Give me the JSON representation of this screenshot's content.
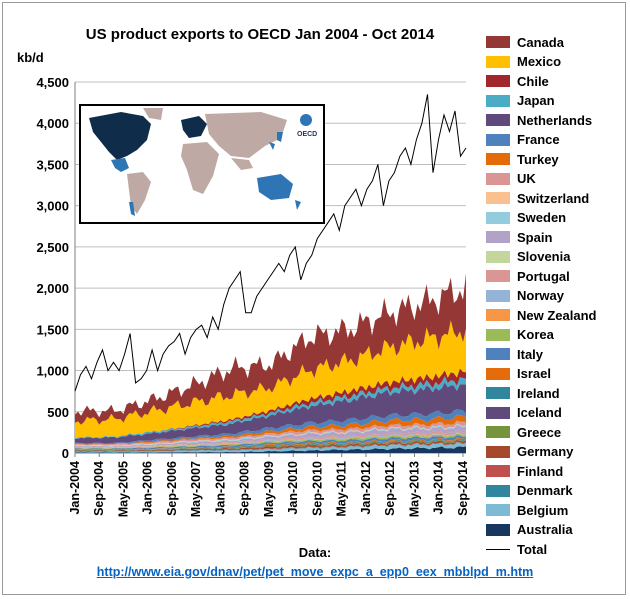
{
  "chart_data": {
    "type": "area",
    "title": "US product exports to OECD Jan 2004 - Oct 2014",
    "ylabel": "kb/d",
    "ylim": [
      0,
      4500
    ],
    "yticks": [
      "0",
      "500",
      "1,000",
      "1,500",
      "2,000",
      "2,500",
      "3,000",
      "3,500",
      "4,000",
      "4,500"
    ],
    "xticks": [
      "Jan-2004",
      "Sep-2004",
      "May-2005",
      "Jan-2006",
      "Sep-2006",
      "May-2007",
      "Jan-2008",
      "Sep-2008",
      "May-2009",
      "Jan-2010",
      "Sep-2010",
      "May-2011",
      "Jan-2012",
      "Sep-2012",
      "May-2013",
      "Jan-2014",
      "Sep-2014"
    ],
    "x_start": "Jan-2004",
    "x_end": "Oct-2014",
    "stacked": true,
    "grid": "horizontal",
    "legend_position": "right",
    "series": [
      {
        "name": "Canada",
        "color": "#953735",
        "values": [
          120,
          100,
          140,
          210,
          320,
          280,
          400,
          380,
          420,
          450,
          520
        ]
      },
      {
        "name": "Mexico",
        "color": "#ffc000",
        "values": [
          200,
          210,
          250,
          280,
          300,
          280,
          350,
          370,
          420,
          470,
          500
        ]
      },
      {
        "name": "Chile",
        "color": "#a0282c",
        "values": [
          0,
          0,
          0,
          10,
          20,
          30,
          50,
          60,
          70,
          80,
          90
        ]
      },
      {
        "name": "Japan",
        "color": "#4bacc6",
        "values": [
          10,
          10,
          20,
          20,
          30,
          30,
          40,
          50,
          50,
          60,
          70
        ]
      },
      {
        "name": "Netherlands",
        "color": "#604a7b",
        "values": [
          60,
          70,
          80,
          100,
          120,
          150,
          200,
          240,
          280,
          300,
          320
        ]
      },
      {
        "name": "France",
        "color": "#4f81bd",
        "values": [
          10,
          10,
          20,
          20,
          30,
          40,
          50,
          60,
          60,
          70,
          70
        ]
      },
      {
        "name": "Turkey",
        "color": "#e36c09",
        "values": [
          5,
          5,
          10,
          15,
          20,
          30,
          40,
          50,
          60,
          60,
          70
        ]
      },
      {
        "name": "UK",
        "color": "#d99694",
        "values": [
          10,
          10,
          15,
          20,
          20,
          25,
          30,
          30,
          35,
          35,
          40
        ]
      },
      {
        "name": "Switzerland",
        "color": "#fac090",
        "values": [
          5,
          5,
          5,
          5,
          5,
          5,
          5,
          5,
          5,
          5,
          5
        ]
      },
      {
        "name": "Sweden",
        "color": "#93cddd",
        "values": [
          5,
          5,
          5,
          10,
          10,
          10,
          10,
          10,
          10,
          10,
          10
        ]
      },
      {
        "name": "Spain",
        "color": "#b3a2c7",
        "values": [
          10,
          10,
          15,
          20,
          20,
          30,
          40,
          40,
          50,
          50,
          60
        ]
      },
      {
        "name": "Slovenia",
        "color": "#c3d69b",
        "values": [
          0,
          0,
          0,
          0,
          0,
          0,
          0,
          0,
          0,
          0,
          0
        ]
      },
      {
        "name": "Portugal",
        "color": "#d99694",
        "values": [
          5,
          5,
          5,
          10,
          10,
          10,
          15,
          15,
          20,
          20,
          20
        ]
      },
      {
        "name": "Norway",
        "color": "#95b3d7",
        "values": [
          5,
          5,
          5,
          5,
          10,
          10,
          10,
          10,
          10,
          10,
          10
        ]
      },
      {
        "name": "New Zealand",
        "color": "#f79646",
        "values": [
          5,
          5,
          5,
          5,
          5,
          5,
          5,
          5,
          5,
          5,
          5
        ]
      },
      {
        "name": "Korea",
        "color": "#9bbb59",
        "values": [
          5,
          5,
          10,
          10,
          10,
          15,
          15,
          20,
          20,
          20,
          20
        ]
      },
      {
        "name": "Italy",
        "color": "#4f81bd",
        "values": [
          10,
          10,
          15,
          15,
          20,
          20,
          25,
          25,
          30,
          30,
          30
        ]
      },
      {
        "name": "Israel",
        "color": "#e46c0a",
        "values": [
          5,
          5,
          5,
          5,
          5,
          10,
          10,
          10,
          10,
          10,
          10
        ]
      },
      {
        "name": "Ireland",
        "color": "#31859c",
        "values": [
          5,
          5,
          5,
          5,
          10,
          10,
          10,
          10,
          10,
          10,
          10
        ]
      },
      {
        "name": "Iceland",
        "color": "#604a7b",
        "values": [
          0,
          0,
          0,
          0,
          0,
          0,
          0,
          0,
          0,
          0,
          0
        ]
      },
      {
        "name": "Greece",
        "color": "#77933c",
        "values": [
          5,
          5,
          5,
          5,
          5,
          10,
          10,
          10,
          10,
          10,
          10
        ]
      },
      {
        "name": "Germany",
        "color": "#a5482b",
        "values": [
          10,
          10,
          10,
          15,
          15,
          20,
          20,
          20,
          20,
          20,
          20
        ]
      },
      {
        "name": "Finland",
        "color": "#c0504d",
        "values": [
          0,
          0,
          0,
          0,
          5,
          5,
          5,
          5,
          5,
          5,
          5
        ]
      },
      {
        "name": "Denmark",
        "color": "#31859c",
        "values": [
          5,
          5,
          5,
          5,
          5,
          5,
          5,
          5,
          5,
          5,
          5
        ]
      },
      {
        "name": "Belgium",
        "color": "#7dbad3",
        "values": [
          10,
          10,
          15,
          20,
          20,
          25,
          30,
          30,
          40,
          40,
          40
        ]
      },
      {
        "name": "Australia",
        "color": "#17375e",
        "values": [
          5,
          5,
          5,
          10,
          10,
          20,
          30,
          40,
          50,
          60,
          70
        ]
      }
    ],
    "total": {
      "name": "Total",
      "color": "#000000",
      "values": [
        750,
        950,
        1050,
        900,
        1100,
        1250,
        1000,
        1100,
        1000,
        1200,
        1450,
        850,
        900,
        1000,
        1250,
        1000,
        1200,
        1300,
        1350,
        1450,
        1200,
        1400,
        1500,
        1550,
        1400,
        1650,
        1500,
        1800,
        2000,
        2100,
        2200,
        1700,
        1700,
        1900,
        2000,
        2100,
        2200,
        2300,
        2200,
        2400,
        2500,
        2100,
        2300,
        2400,
        2600,
        2700,
        2800,
        2900,
        2700,
        3000,
        3100,
        3200,
        3000,
        3200,
        3300,
        3500,
        3000,
        3300,
        3400,
        3600,
        3700,
        3500,
        3800,
        4000,
        4350,
        3400,
        3800,
        4100,
        3900,
        4150,
        3600,
        3700
      ]
    }
  },
  "source": {
    "label": "Data:",
    "link": "http://www.eia.gov/dnav/pet/pet_move_expc_a_epp0_eex_mbblpd_m.htm"
  },
  "map": {
    "logo_text": "OECD"
  }
}
